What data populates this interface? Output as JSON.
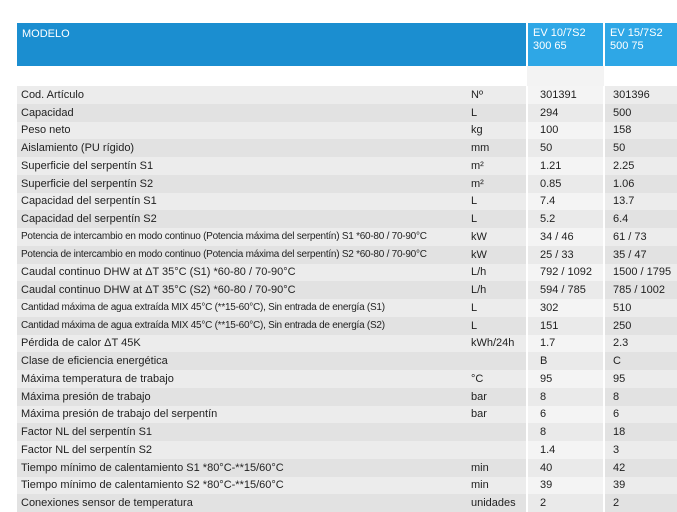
{
  "header": {
    "modelo": "MODELO",
    "models": [
      "EV 10/7S2\n300 65",
      "EV 15/7S2\n500 75"
    ],
    "model1_line1": "EV 10/7S2",
    "model1_line2": "300 65",
    "model2_line1": "EV 15/7S2",
    "model2_line2": "500 75"
  },
  "rows": [
    {
      "label": "Cod. Artículo",
      "unit": "Nº",
      "v1": "301391",
      "v2": "301396"
    },
    {
      "label": "Capacidad",
      "unit": "L",
      "v1": "294",
      "v2": "500"
    },
    {
      "label": "Peso neto",
      "unit": "kg",
      "v1": "100",
      "v2": "158"
    },
    {
      "label": "Aislamiento (PU rígido)",
      "unit": "mm",
      "v1": "50",
      "v2": "50"
    },
    {
      "label": "Superficie del serpentín S1",
      "unit": "m²",
      "v1": "1.21",
      "v2": "2.25"
    },
    {
      "label": "Superficie del serpentín S2",
      "unit": "m²",
      "v1": "0.85",
      "v2": "1.06"
    },
    {
      "label": "Capacidad del serpentín S1",
      "unit": "L",
      "v1": "7.4",
      "v2": "13.7"
    },
    {
      "label": "Capacidad del serpentín S2",
      "unit": "L",
      "v1": "5.2",
      "v2": "6.4"
    },
    {
      "label": "Potencia de intercambio en modo continuo (Potencia máxima del serpentín) S1 *60-80 / 70-90°C",
      "unit": "kW",
      "v1": "34 / 46",
      "v2": "61 / 73"
    },
    {
      "label": "Potencia de intercambio en modo continuo (Potencia máxima del serpentín) S2 *60-80 / 70-90°C",
      "unit": "kW",
      "v1": "25 / 33",
      "v2": "35 / 47"
    },
    {
      "label": "Caudal continuo DHW at ΔT 35°C (S1) *60-80 / 70-90°C",
      "unit": "L/h",
      "v1": "792 / 1092",
      "v2": "1500 / 1795"
    },
    {
      "label": "Caudal continuo DHW at ΔT 35°C (S2) *60-80 / 70-90°C",
      "unit": "L/h",
      "v1": "594 / 785",
      "v2": "785 / 1002"
    },
    {
      "label": "Cantidad máxima de agua extraída MIX 45°C (**15-60°C), Sin entrada de energía (S1)",
      "unit": "L",
      "v1": "302",
      "v2": "510"
    },
    {
      "label": "Cantidad máxima de agua extraída MIX 45°C (**15-60°C), Sin entrada de energía (S2)",
      "unit": "L",
      "v1": "151",
      "v2": "250"
    },
    {
      "label": "Pérdida de calor ΔT 45K",
      "unit": "kWh/24h",
      "v1": "1.7",
      "v2": "2.3"
    },
    {
      "label": "Clase de eficiencia energética",
      "unit": "",
      "v1": "B",
      "v2": "C"
    },
    {
      "label": "Máxima temperatura de trabajo",
      "unit": "°C",
      "v1": "95",
      "v2": "95"
    },
    {
      "label": "Máxima presión de trabajo",
      "unit": "bar",
      "v1": "8",
      "v2": "8"
    },
    {
      "label": "Máxima presión de trabajo del serpentín",
      "unit": "bar",
      "v1": "6",
      "v2": "6"
    },
    {
      "label": "Factor NL del serpentín S1",
      "unit": "",
      "v1": "8",
      "v2": "18"
    },
    {
      "label": "Factor NL del serpentín S2",
      "unit": "",
      "v1": "1.4",
      "v2": "3"
    },
    {
      "label": "Tiempo mínimo de calentamiento S1 *80°C-**15/60°C",
      "unit": "min",
      "v1": "40",
      "v2": "42"
    },
    {
      "label": "Tiempo mínimo de calentamiento S2 *80°C-**15/60°C",
      "unit": "min",
      "v1": "39",
      "v2": "39"
    },
    {
      "label": "Conexiones sensor de temperatura",
      "unit": "unidades",
      "v1": "2",
      "v2": "2"
    }
  ],
  "colors": {
    "header_blue": "#1b8ed0",
    "header_model_blue": "#2ea7e6",
    "row_gray": "#ececec"
  }
}
